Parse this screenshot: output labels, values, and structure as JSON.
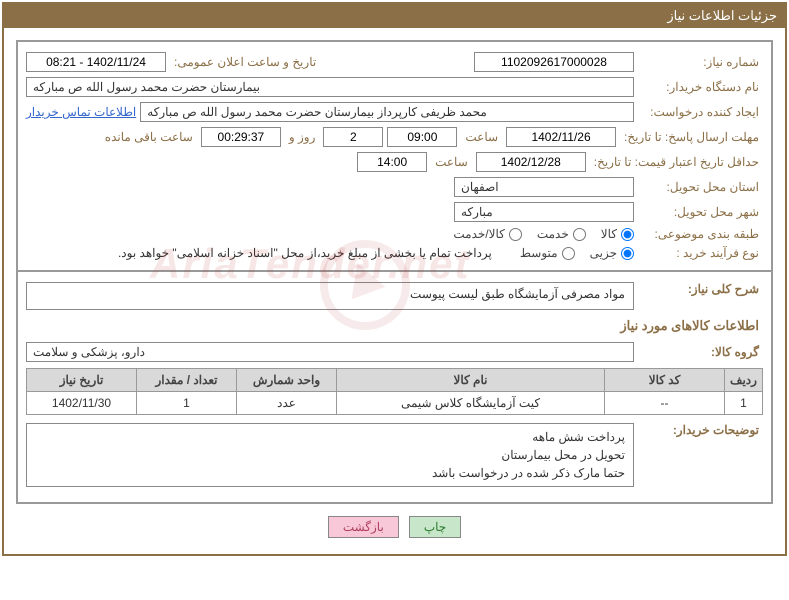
{
  "header": {
    "title": "جزئیات اطلاعات نیاز"
  },
  "fields": {
    "need_number_label": "شماره نیاز:",
    "need_number": "1102092617000028",
    "announce_date_label": "تاریخ و ساعت اعلان عمومی:",
    "announce_date": "1402/11/24 - 08:21",
    "buyer_label": "نام دستگاه خریدار:",
    "buyer": "بیمارستان حضرت محمد رسول الله  ص  مبارکه",
    "requester_label": "ایجاد کننده درخواست:",
    "requester": "محمد ظریفی کارپرداز بیمارستان حضرت محمد رسول الله  ص  مبارکه",
    "contact_link": "اطلاعات تماس خریدار",
    "deadline_label": "مهلت ارسال پاسخ: تا تاریخ:",
    "deadline_date": "1402/11/26",
    "hour_label": "ساعت",
    "deadline_time": "09:00",
    "days": "2",
    "days_and": "روز و",
    "countdown": "00:29:37",
    "remaining": "ساعت باقی مانده",
    "validity_label": "حداقل تاریخ اعتبار قیمت: تا تاریخ:",
    "validity_date": "1402/12/28",
    "validity_time": "14:00",
    "province_label": "استان محل تحویل:",
    "province": "اصفهان",
    "city_label": "شهر محل تحویل:",
    "city": "مبارکه",
    "category_label": "طبقه بندی موضوعی:",
    "cat_goods": "کالا",
    "cat_service": "خدمت",
    "cat_both": "کالا/خدمت",
    "purchase_type_label": "نوع فرآیند خرید :",
    "pt_partial": "جزیی",
    "pt_medium": "متوسط",
    "payment_note": "پرداخت تمام یا بخشی از مبلغ خرید،از محل \"اسناد خزانه اسلامی\" خواهد بود.",
    "desc_label": "شرح کلی نیاز:",
    "desc_text": "مواد مصرفی آزمایشگاه طبق لیست پیوست",
    "goods_section": "اطلاعات کالاهای مورد نیاز",
    "group_label": "گروه کالا:",
    "group_value": "دارو، پزشکی و سلامت",
    "buyer_notes_label": "توضیحات خریدار:",
    "buyer_notes_l1": "پرداخت شش ماهه",
    "buyer_notes_l2": "تحویل در محل بیمارستان",
    "buyer_notes_l3": "حتما مارک ذکر شده در درخواست باشد"
  },
  "table": {
    "headers": [
      "ردیف",
      "کد کالا",
      "نام کالا",
      "واحد شمارش",
      "تعداد / مقدار",
      "تاریخ نیاز"
    ],
    "rows": [
      [
        "1",
        "--",
        "کیت آزمایشگاه کلاس شیمی",
        "عدد",
        "1",
        "1402/11/30"
      ]
    ],
    "col_widths": [
      "38px",
      "120px",
      "auto",
      "100px",
      "100px",
      "110px"
    ]
  },
  "buttons": {
    "print": "چاپ",
    "back": "بازگشت"
  },
  "colors": {
    "brown": "#8b6f47",
    "border_gray": "#999999",
    "th_bg": "#d9d9d9",
    "link": "#3366cc"
  }
}
